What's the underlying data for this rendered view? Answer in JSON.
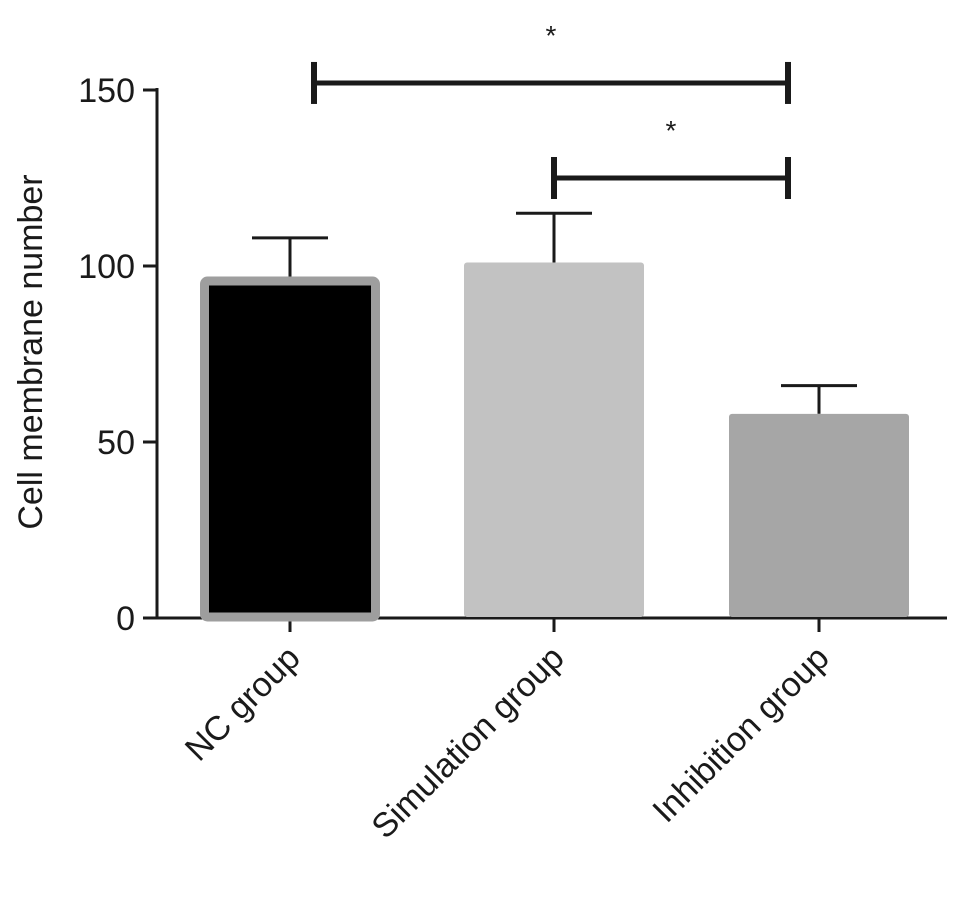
{
  "chart_data": {
    "type": "bar",
    "title": "",
    "xlabel": "",
    "ylabel": "Cell membrane number",
    "ylim": [
      0,
      150
    ],
    "yticks": [
      0,
      50,
      100,
      150
    ],
    "categories": [
      "NC group",
      "Simulation group",
      "Inhibition group"
    ],
    "values": [
      97,
      101,
      58
    ],
    "errors": [
      11,
      14,
      8
    ],
    "bar_fill_colors": [
      "#000000",
      "#c2c2c2",
      "#a6a6a6"
    ],
    "bar_edge_colors": [
      "#9e9e9e",
      "#c2c2c2",
      "#a6a6a6"
    ],
    "significance": [
      {
        "from": 0,
        "to": 2,
        "y": 152,
        "label": "*"
      },
      {
        "from": 1,
        "to": 2,
        "y": 125,
        "label": "*"
      }
    ],
    "grid": false,
    "legend": "none"
  }
}
